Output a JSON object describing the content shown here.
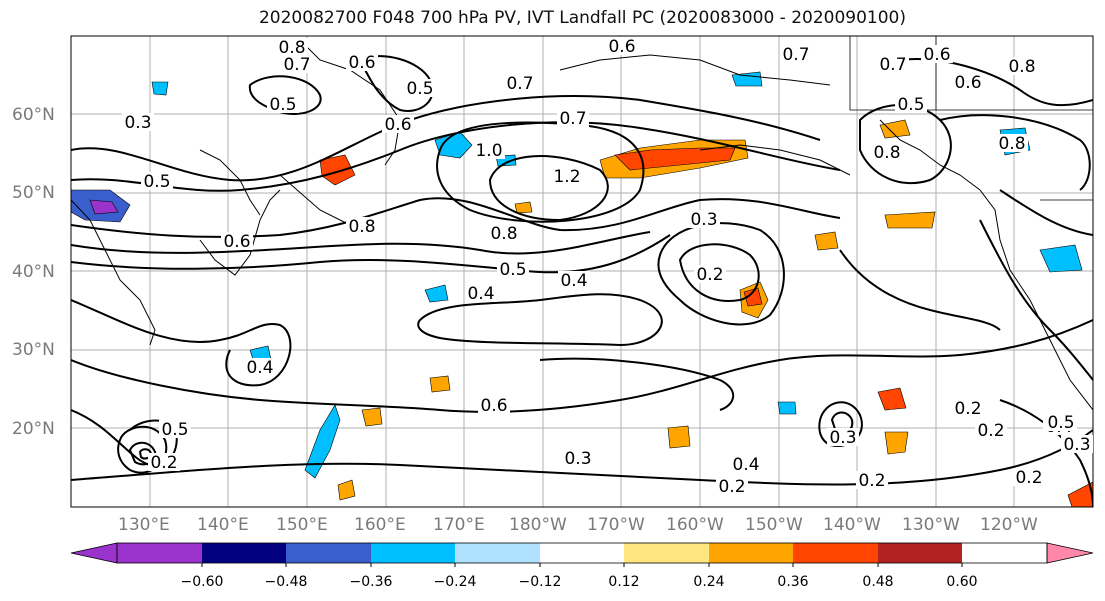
{
  "title": "2020082700 F048 700 hPa PV, IVT Landfall PC (2020083000 - 2020090100)",
  "map": {
    "lat_labels": [
      "60°N",
      "50°N",
      "40°N",
      "30°N",
      "20°N"
    ],
    "lon_labels": [
      "130°E",
      "140°E",
      "150°E",
      "160°E",
      "170°E",
      "180°W",
      "170°W",
      "160°W",
      "150°W",
      "140°W",
      "130°W",
      "120°W"
    ],
    "contour_labels": [
      "0.8",
      "0.7",
      "0.6",
      "0.5",
      "0.3",
      "0.5",
      "0.6",
      "0.7",
      "0.6",
      "0.7",
      "0.7",
      "0.6",
      "0.6",
      "0.8",
      "0.7",
      "0.5",
      "1.0",
      "1.2",
      "0.5",
      "0.8",
      "0.6",
      "0.8",
      "0.8",
      "0.8",
      "0.4",
      "0.3",
      "0.2",
      "0.5",
      "0.4",
      "0.4",
      "0.6",
      "0.3",
      "0.2",
      "0.2",
      "0.4",
      "0.2",
      "0.2",
      "0.4",
      "0.2",
      "0.3",
      "0.3",
      "0.5",
      "0.5",
      "0.2"
    ],
    "colors": {
      "coast": "#000000",
      "grid": "#b0b0b0",
      "contour": "#000000"
    }
  },
  "colorbar": {
    "tick_labels": [
      "−0.60",
      "−0.48",
      "−0.36",
      "−0.24",
      "−0.12",
      "0.12",
      "0.24",
      "0.36",
      "0.48",
      "0.60"
    ],
    "colors": [
      "#9933cc",
      "#000080",
      "#3a5fcd",
      "#00bfff",
      "#b0e2ff",
      "#ffffff",
      "#ffe680",
      "#ffa500",
      "#ff4500",
      "#b22222",
      "#ff88aa"
    ]
  }
}
